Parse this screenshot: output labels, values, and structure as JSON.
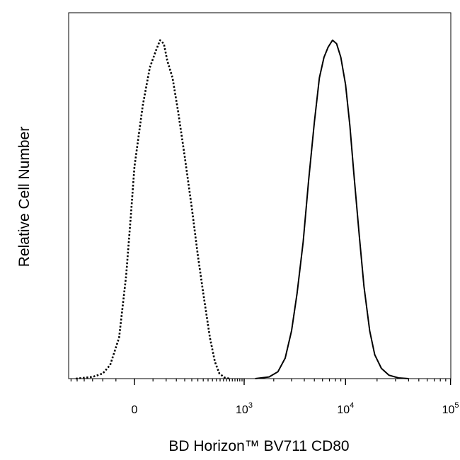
{
  "chart_data": {
    "type": "line",
    "xlabel": "BD Horizon™ BV711 CD80",
    "ylabel": "Relative Cell Number",
    "x_scale": "biexponential",
    "x_range": [
      -300,
      250000
    ],
    "ylim": [
      0,
      100
    ],
    "grid": false,
    "legend": "none",
    "x_ticks": [
      {
        "value": 0,
        "base": "0",
        "exp": ""
      },
      {
        "value": 1000,
        "base": "10",
        "exp": "3"
      },
      {
        "value": 10000,
        "base": "10",
        "exp": "4"
      },
      {
        "value": 100000,
        "base": "10",
        "exp": "5"
      }
    ],
    "series": [
      {
        "style": "dotted",
        "color": "#000000",
        "points": [
          [
            -260,
            0
          ],
          [
            -150,
            0.5
          ],
          [
            -100,
            1.5
          ],
          [
            -70,
            4
          ],
          [
            -40,
            12
          ],
          [
            -20,
            30
          ],
          [
            -8,
            48
          ],
          [
            0,
            62
          ],
          [
            20,
            80
          ],
          [
            40,
            91
          ],
          [
            60,
            96
          ],
          [
            75,
            99
          ],
          [
            90,
            98
          ],
          [
            105,
            93
          ],
          [
            130,
            88
          ],
          [
            160,
            78
          ],
          [
            200,
            65
          ],
          [
            250,
            50
          ],
          [
            300,
            36
          ],
          [
            350,
            25
          ],
          [
            420,
            12
          ],
          [
            480,
            5
          ],
          [
            540,
            1.5
          ],
          [
            620,
            0.3
          ],
          [
            700,
            0
          ]
        ]
      },
      {
        "style": "solid",
        "color": "#000000",
        "points": [
          [
            1300,
            0
          ],
          [
            1800,
            0.5
          ],
          [
            2200,
            2
          ],
          [
            2600,
            6
          ],
          [
            3000,
            14
          ],
          [
            3400,
            25
          ],
          [
            3900,
            40
          ],
          [
            4400,
            58
          ],
          [
            5000,
            75
          ],
          [
            5600,
            88
          ],
          [
            6200,
            94
          ],
          [
            6800,
            97
          ],
          [
            7500,
            99
          ],
          [
            8200,
            98
          ],
          [
            9000,
            94
          ],
          [
            10000,
            86
          ],
          [
            11000,
            74
          ],
          [
            12000,
            60
          ],
          [
            13500,
            42
          ],
          [
            15000,
            27
          ],
          [
            17000,
            14
          ],
          [
            19000,
            7
          ],
          [
            22000,
            3
          ],
          [
            26000,
            1
          ],
          [
            32000,
            0.2
          ],
          [
            40000,
            0
          ]
        ]
      }
    ]
  }
}
